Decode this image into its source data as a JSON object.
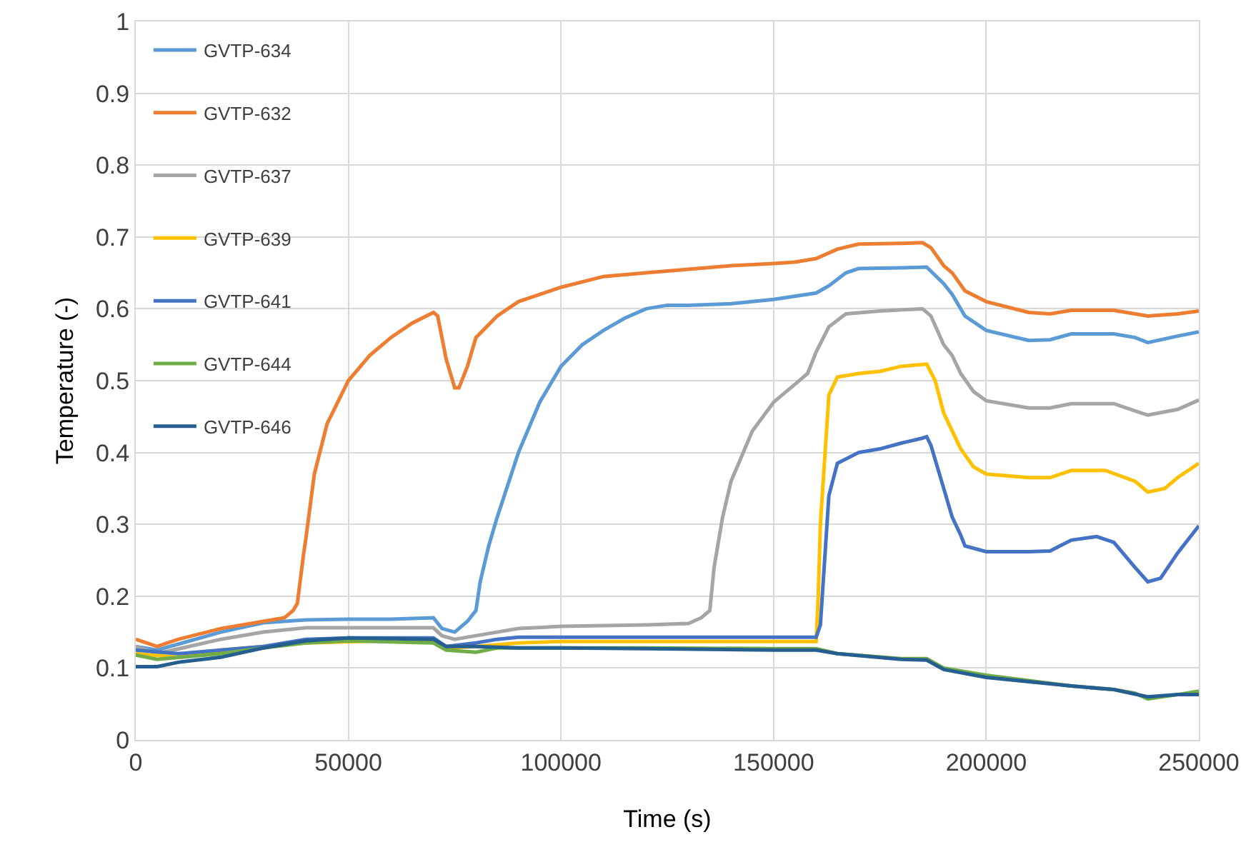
{
  "chart_data": {
    "type": "line",
    "xlabel": "Time (s)",
    "ylabel": "Temperature (-)",
    "xlim": [
      0,
      250000
    ],
    "xticks": [
      0,
      50000,
      100000,
      150000,
      200000,
      250000
    ],
    "ylim": [
      0,
      1
    ],
    "yticks": [
      0,
      {
        "value": 0.1,
        "label": "0.1"
      },
      {
        "value": 0.2,
        "label": "0.2"
      },
      {
        "value": 0.3,
        "label": "0.3"
      },
      {
        "value": 0.4,
        "label": "0.4"
      },
      {
        "value": 0.5,
        "label": "0.5"
      },
      {
        "value": 0.6,
        "label": "0.6"
      },
      {
        "value": 0.7,
        "label": "0.7"
      },
      {
        "value": 0.8,
        "label": "0.8"
      },
      {
        "value": 0.9,
        "label": "0.9"
      },
      1
    ],
    "grid": true,
    "legend": "top left",
    "marker": "none",
    "line_style": "solid",
    "series": [
      {
        "name": "GVTP-634",
        "color": "#5b9bd5",
        "x": [
          0,
          5000,
          20000,
          30000,
          40000,
          50000,
          60000,
          70000,
          72000,
          75000,
          78000,
          80000,
          81000,
          83000,
          85000,
          90000,
          95000,
          100000,
          105000,
          110000,
          115000,
          120000,
          125000,
          130000,
          140000,
          150000,
          160000,
          163000,
          167000,
          170000,
          180000,
          186000,
          190000,
          192000,
          195000,
          200000,
          210000,
          215000,
          220000,
          230000,
          235000,
          238000,
          245000,
          250000
        ],
        "values": [
          0.13,
          0.125,
          0.15,
          0.163,
          0.167,
          0.168,
          0.168,
          0.17,
          0.155,
          0.15,
          0.165,
          0.18,
          0.22,
          0.27,
          0.31,
          0.4,
          0.47,
          0.52,
          0.55,
          0.57,
          0.587,
          0.6,
          0.605,
          0.605,
          0.607,
          0.613,
          0.622,
          0.632,
          0.65,
          0.656,
          0.657,
          0.658,
          0.635,
          0.62,
          0.59,
          0.57,
          0.556,
          0.557,
          0.565,
          0.565,
          0.56,
          0.553,
          0.562,
          0.568
        ]
      },
      {
        "name": "GVTP-632",
        "color": "#ed7d31",
        "x": [
          0,
          5000,
          10000,
          20000,
          30000,
          35000,
          37000,
          38000,
          39500,
          40000,
          42000,
          45000,
          50000,
          55000,
          60000,
          65000,
          70000,
          71000,
          73000,
          75000,
          76000,
          78000,
          80000,
          85000,
          90000,
          100000,
          110000,
          120000,
          130000,
          140000,
          150000,
          155000,
          160000,
          165000,
          170000,
          180000,
          185000,
          187000,
          190000,
          192000,
          195000,
          200000,
          210000,
          215000,
          220000,
          230000,
          235000,
          238000,
          245000,
          250000
        ],
        "values": [
          0.14,
          0.13,
          0.14,
          0.155,
          0.165,
          0.17,
          0.18,
          0.19,
          0.26,
          0.28,
          0.37,
          0.44,
          0.5,
          0.535,
          0.56,
          0.58,
          0.595,
          0.59,
          0.53,
          0.49,
          0.49,
          0.52,
          0.56,
          0.59,
          0.61,
          0.63,
          0.645,
          0.65,
          0.655,
          0.66,
          0.663,
          0.665,
          0.67,
          0.683,
          0.69,
          0.691,
          0.692,
          0.685,
          0.66,
          0.65,
          0.625,
          0.61,
          0.595,
          0.593,
          0.598,
          0.598,
          0.593,
          0.59,
          0.593,
          0.597
        ]
      },
      {
        "name": "GVTP-637",
        "color": "#a5a5a5",
        "x": [
          0,
          5000,
          20000,
          30000,
          40000,
          50000,
          70000,
          72000,
          75000,
          80000,
          90000,
          100000,
          120000,
          130000,
          133000,
          135000,
          136000,
          138000,
          140000,
          145000,
          150000,
          155000,
          158000,
          160000,
          163000,
          167000,
          175000,
          185000,
          187000,
          190000,
          192000,
          194000,
          197000,
          200000,
          210000,
          215000,
          220000,
          230000,
          235000,
          238000,
          245000,
          250000
        ],
        "values": [
          0.13,
          0.12,
          0.14,
          0.15,
          0.156,
          0.156,
          0.156,
          0.145,
          0.14,
          0.145,
          0.155,
          0.158,
          0.16,
          0.162,
          0.17,
          0.18,
          0.24,
          0.31,
          0.36,
          0.43,
          0.47,
          0.495,
          0.51,
          0.54,
          0.575,
          0.593,
          0.597,
          0.6,
          0.59,
          0.55,
          0.535,
          0.51,
          0.485,
          0.472,
          0.462,
          0.462,
          0.468,
          0.468,
          0.458,
          0.452,
          0.46,
          0.473
        ]
      },
      {
        "name": "GVTP-639",
        "color": "#ffc000",
        "x": [
          0,
          10000,
          20000,
          40000,
          70000,
          73000,
          80000,
          90000,
          100000,
          120000,
          150000,
          160000,
          160500,
          161000,
          162000,
          163000,
          165000,
          170000,
          175000,
          180000,
          186000,
          188000,
          190000,
          192000,
          194000,
          197000,
          200000,
          210000,
          215000,
          220000,
          228000,
          235000,
          238000,
          242000,
          245000,
          250000
        ],
        "values": [
          0.12,
          0.115,
          0.125,
          0.135,
          0.14,
          0.128,
          0.13,
          0.135,
          0.137,
          0.137,
          0.137,
          0.137,
          0.2,
          0.3,
          0.39,
          0.48,
          0.505,
          0.51,
          0.513,
          0.52,
          0.523,
          0.5,
          0.455,
          0.43,
          0.405,
          0.38,
          0.37,
          0.365,
          0.365,
          0.375,
          0.375,
          0.36,
          0.345,
          0.35,
          0.365,
          0.385
        ]
      },
      {
        "name": "GVTP-641",
        "color": "#4472c4",
        "x": [
          0,
          10000,
          20000,
          30000,
          40000,
          50000,
          70000,
          73000,
          80000,
          85000,
          90000,
          100000,
          120000,
          150000,
          160000,
          161000,
          162000,
          163000,
          165000,
          170000,
          175000,
          180000,
          185000,
          186000,
          187000,
          190000,
          192000,
          194000,
          195000,
          200000,
          210000,
          215000,
          220000,
          226000,
          230000,
          235000,
          238000,
          241000,
          245000,
          250000
        ],
        "values": [
          0.125,
          0.12,
          0.125,
          0.13,
          0.14,
          0.142,
          0.142,
          0.13,
          0.135,
          0.14,
          0.143,
          0.143,
          0.143,
          0.143,
          0.143,
          0.16,
          0.25,
          0.34,
          0.385,
          0.4,
          0.405,
          0.413,
          0.42,
          0.422,
          0.41,
          0.35,
          0.31,
          0.285,
          0.27,
          0.262,
          0.262,
          0.263,
          0.278,
          0.283,
          0.275,
          0.24,
          0.22,
          0.225,
          0.26,
          0.298
        ]
      },
      {
        "name": "GVTP-644",
        "color": "#70ad47",
        "x": [
          0,
          5000,
          20000,
          30000,
          40000,
          50000,
          70000,
          73000,
          80000,
          85000,
          100000,
          120000,
          150000,
          160000,
          165000,
          180000,
          186000,
          190000,
          200000,
          220000,
          230000,
          235000,
          238000,
          245000,
          250000
        ],
        "values": [
          0.118,
          0.112,
          0.12,
          0.128,
          0.135,
          0.138,
          0.135,
          0.125,
          0.122,
          0.128,
          0.128,
          0.128,
          0.127,
          0.127,
          0.12,
          0.113,
          0.113,
          0.1,
          0.09,
          0.075,
          0.07,
          0.065,
          0.057,
          0.063,
          0.068
        ]
      },
      {
        "name": "GVTP-646",
        "color": "#255e91",
        "x": [
          0,
          5000,
          10000,
          20000,
          30000,
          40000,
          50000,
          70000,
          73000,
          80000,
          90000,
          100000,
          120000,
          150000,
          160000,
          165000,
          180000,
          186000,
          190000,
          200000,
          220000,
          230000,
          238000,
          245000,
          250000
        ],
        "values": [
          0.102,
          0.102,
          0.108,
          0.115,
          0.128,
          0.138,
          0.142,
          0.14,
          0.13,
          0.13,
          0.128,
          0.128,
          0.127,
          0.125,
          0.125,
          0.12,
          0.112,
          0.111,
          0.098,
          0.087,
          0.075,
          0.07,
          0.06,
          0.063,
          0.063
        ]
      }
    ]
  }
}
